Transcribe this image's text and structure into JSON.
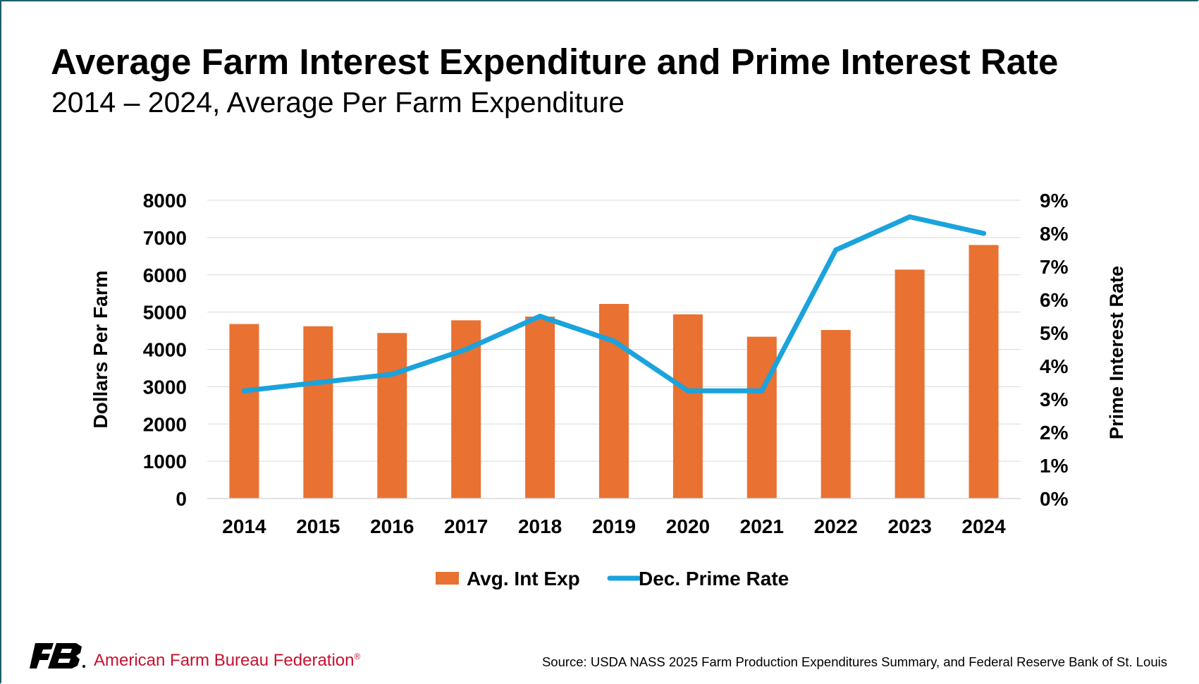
{
  "chart_data": {
    "type": "bar+line",
    "title": "Average Farm Interest Expenditure and Prime Interest Rate",
    "subtitle": "2014 – 2024, Average Per Farm Expenditure",
    "categories": [
      "2014",
      "2015",
      "2016",
      "2017",
      "2018",
      "2019",
      "2020",
      "2021",
      "2022",
      "2023",
      "2024"
    ],
    "series": [
      {
        "name": "Avg. Int Exp",
        "type": "bar",
        "axis": "left",
        "color": "#e97132",
        "values": [
          4680,
          4620,
          4440,
          4780,
          4880,
          5220,
          4940,
          4340,
          4520,
          6140,
          6800
        ]
      },
      {
        "name": "Dec. Prime Rate",
        "type": "line",
        "axis": "right",
        "color": "#1aa3dc",
        "values": [
          3.25,
          3.5,
          3.75,
          4.5,
          5.5,
          4.75,
          3.25,
          3.25,
          7.5,
          8.5,
          8.0
        ]
      }
    ],
    "ylabel": "Dollars Per Farm",
    "y2label": "Prime Interest Rate",
    "ylim": [
      0,
      8000
    ],
    "y2lim": [
      0,
      9
    ],
    "yticks": [
      "0",
      "1000",
      "2000",
      "3000",
      "4000",
      "5000",
      "6000",
      "7000",
      "8000"
    ],
    "y2ticks": [
      "0%",
      "1%",
      "2%",
      "3%",
      "4%",
      "5%",
      "6%",
      "7%",
      "8%",
      "9%"
    ],
    "grid": true,
    "legend": "bottom-center"
  },
  "footer": {
    "organization": "American Farm Bureau Federation",
    "registered_mark": "®",
    "source": "Source: USDA NASS 2025 Farm Production Expenditures Summary, and Federal Reserve Bank of St. Louis"
  },
  "colors": {
    "bar": "#e97132",
    "line": "#1aa3dc",
    "grid": "#d9d9d9",
    "brand": "#c8102e",
    "logo": "#000000"
  }
}
